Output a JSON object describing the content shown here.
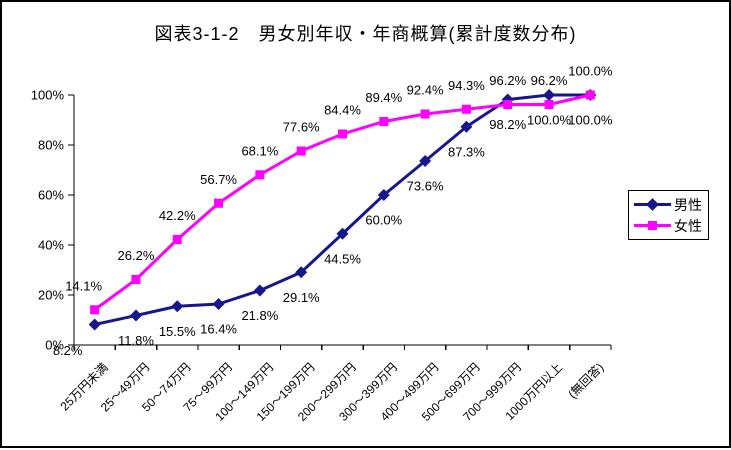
{
  "chart_data": {
    "type": "line",
    "title": "図表3-1-2　男女別年収・年商概算(累計度数分布)",
    "categories": [
      "25万円未満",
      "25〜49万円",
      "50〜74万円",
      "75〜99万円",
      "100〜149万円",
      "150〜199万円",
      "200〜299万円",
      "300〜399万円",
      "400〜499万円",
      "500〜699万円",
      "700〜999万円",
      "1000万円以上",
      "(無回答)"
    ],
    "series": [
      {
        "name": "男性",
        "marker": "diamond",
        "color": "#17178b",
        "values": [
          8.2,
          11.8,
          15.5,
          16.4,
          21.8,
          29.1,
          44.5,
          60.0,
          73.6,
          87.3,
          98.2,
          100.0,
          100.0
        ]
      },
      {
        "name": "女性",
        "marker": "square",
        "color": "#ff00ff",
        "values": [
          14.1,
          26.2,
          42.2,
          56.7,
          68.1,
          77.6,
          84.4,
          89.4,
          92.4,
          94.3,
          96.2,
          96.2,
          100.0
        ]
      }
    ],
    "yticks": [
      "0%",
      "20%",
      "40%",
      "60%",
      "80%",
      "100%"
    ],
    "ylim": [
      0,
      100
    ],
    "xlabel": "",
    "ylabel": "",
    "grid": false,
    "data_labels": true,
    "value_suffix": "%",
    "legend_position": "right",
    "axis_color": "#000000",
    "background": "#ffffff"
  }
}
